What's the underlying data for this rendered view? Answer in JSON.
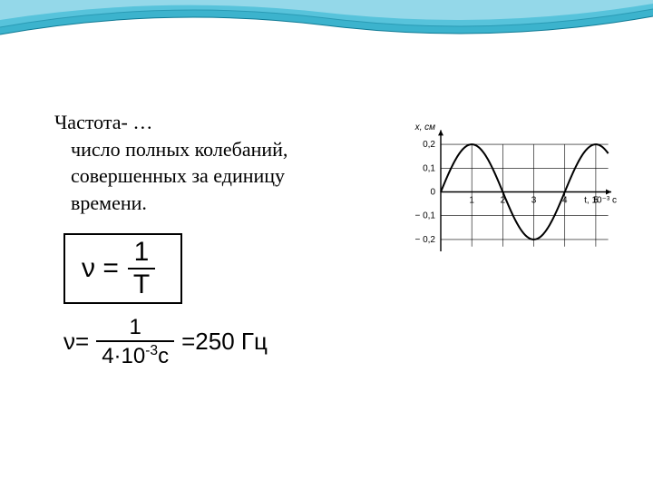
{
  "header": {
    "wave_color_outer": "#1aa6c4",
    "wave_color_mid": "#5cc6dd",
    "wave_color_inner": "#9fdceb",
    "background": "#ffffff"
  },
  "definition": {
    "title": "Частота- …",
    "line1": "число полных колебаний,",
    "line2": "совершенных за единицу",
    "line3": "времени."
  },
  "formula": {
    "lhs": "ν =",
    "numerator": "1",
    "denominator": "T"
  },
  "calculation": {
    "lhs": "ν=",
    "numerator": "1",
    "denom_value": "4·10",
    "denom_exp": "-3",
    "denom_unit": "с",
    "result": "=250 Гц"
  },
  "chart": {
    "y_label": "x, см",
    "x_label": "t, 10⁻³ с",
    "y_ticks": [
      "0,2",
      "0,1",
      "0",
      "− 0,1",
      "− 0,2"
    ],
    "x_ticks": [
      "1",
      "2",
      "3",
      "4",
      "5"
    ],
    "axis_color": "#000000",
    "grid_color": "#000000",
    "curve_color": "#000000",
    "background": "#ffffff",
    "y_range": [
      -0.25,
      0.25
    ],
    "x_range": [
      0,
      5.5
    ],
    "amplitude": 0.2,
    "period": 4,
    "label_fontsize": 10
  }
}
